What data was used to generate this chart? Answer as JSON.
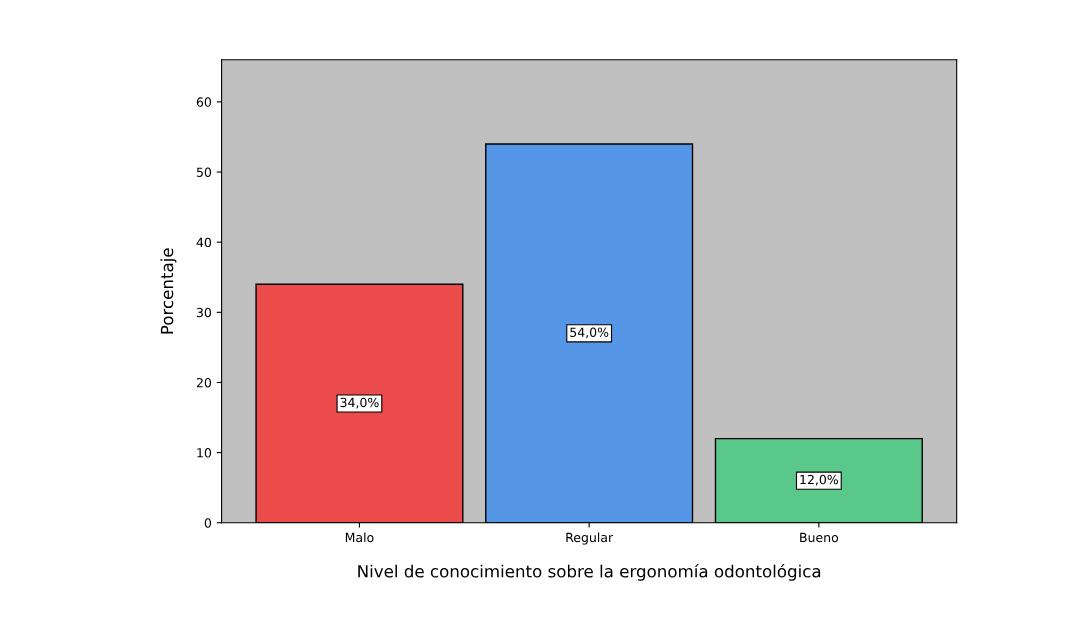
{
  "chart_data": {
    "type": "bar",
    "xlabel": "Nivel de conocimiento sobre la ergonomía odontológica",
    "ylabel": "Porcentaje",
    "categories": [
      "Malo",
      "Regular",
      "Bueno"
    ],
    "values": [
      34,
      54,
      12
    ],
    "colors": [
      "#ec4b4b",
      "#5596e6",
      "#5ac88a"
    ],
    "value_labels": [
      "34,0%",
      "54,0%",
      "12,0%"
    ],
    "ylim": [
      0,
      66
    ],
    "yticks": [
      0,
      10,
      20,
      30,
      40,
      50,
      60
    ],
    "grid": false,
    "legend": false
  }
}
